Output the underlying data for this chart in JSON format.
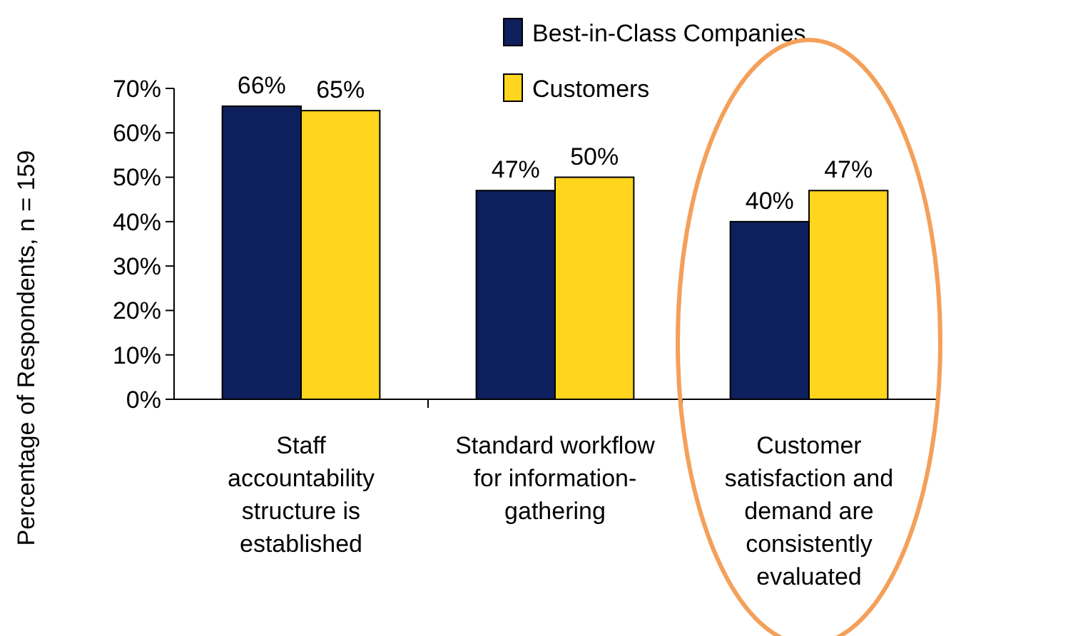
{
  "chart_data": {
    "type": "bar",
    "ylabel": "Percentage of Respondents, n = 159",
    "categories": [
      "Staff accountability structure is established",
      "Standard workflow for information-gathering",
      "Customer satisfaction and demand are consistently evaluated"
    ],
    "series": [
      {
        "name": "Best-in-Class Companies",
        "color": "#0d1f5c",
        "values": [
          66,
          47,
          40
        ],
        "value_labels": [
          "66%",
          "47%",
          "40%"
        ]
      },
      {
        "name": "Customers",
        "color": "#ffd51e",
        "values": [
          65,
          50,
          47
        ],
        "value_labels": [
          "65%",
          "50%",
          "47%"
        ]
      }
    ],
    "ylim": [
      0,
      70
    ],
    "yticks": [
      {
        "value": 0,
        "label": "0%"
      },
      {
        "value": 10,
        "label": "10%"
      },
      {
        "value": 20,
        "label": "20%"
      },
      {
        "value": 30,
        "label": "30%"
      },
      {
        "value": 40,
        "label": "40%"
      },
      {
        "value": 50,
        "label": "50%"
      },
      {
        "value": 60,
        "label": "60%"
      },
      {
        "value": 70,
        "label": "70%"
      }
    ],
    "grid": false,
    "legend": "top right"
  }
}
